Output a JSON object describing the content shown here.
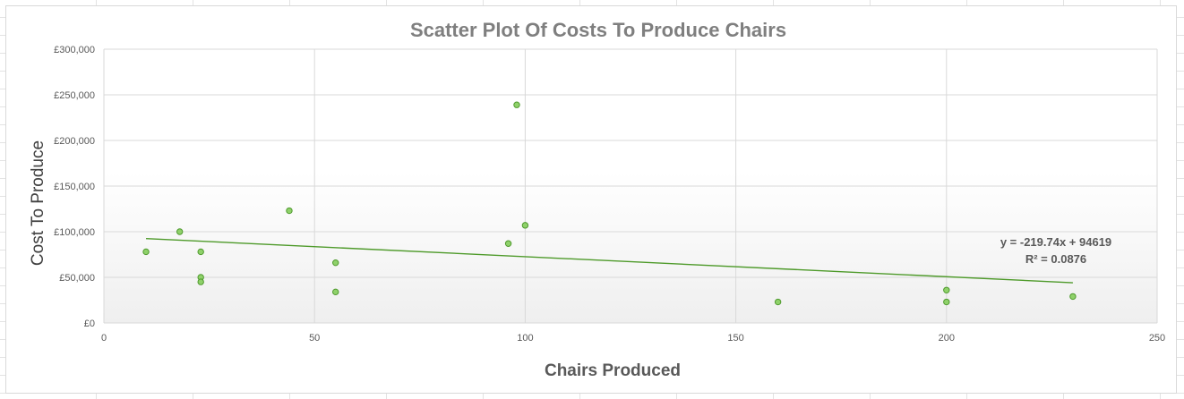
{
  "chart_data": {
    "type": "scatter",
    "title": "Scatter Plot Of Costs To Produce Chairs",
    "xlabel": "Chairs Produced",
    "ylabel": "Cost To Produce",
    "xlim": [
      0,
      250
    ],
    "ylim": [
      0,
      300000
    ],
    "x_ticks": [
      0,
      50,
      100,
      150,
      200,
      250
    ],
    "y_ticks": [
      0,
      50000,
      100000,
      150000,
      200000,
      250000,
      300000
    ],
    "y_tick_labels": [
      "£0",
      "£50,000",
      "£100,000",
      "£150,000",
      "£200,000",
      "£250,000",
      "£300,000"
    ],
    "grid": true,
    "legend": "none",
    "points": [
      {
        "x": 10,
        "y": 78000
      },
      {
        "x": 18,
        "y": 100000
      },
      {
        "x": 23,
        "y": 78000
      },
      {
        "x": 23,
        "y": 50000
      },
      {
        "x": 23,
        "y": 45000
      },
      {
        "x": 44,
        "y": 123000
      },
      {
        "x": 55,
        "y": 66000
      },
      {
        "x": 55,
        "y": 34000
      },
      {
        "x": 96,
        "y": 87000
      },
      {
        "x": 98,
        "y": 239000
      },
      {
        "x": 100,
        "y": 107000
      },
      {
        "x": 160,
        "y": 23000
      },
      {
        "x": 200,
        "y": 36000
      },
      {
        "x": 200,
        "y": 23000
      },
      {
        "x": 230,
        "y": 29000
      }
    ],
    "trendline": {
      "type": "linear",
      "slope": -219.74,
      "intercept": 94619,
      "x_range": [
        10,
        230
      ],
      "equation_text": "y = -219.74x + 94619",
      "r2_text": "R² = 0.0876"
    },
    "colors": {
      "marker_fill": "#8fd16a",
      "marker_stroke": "#4f9a2e",
      "trendline": "#4e9a2a",
      "gridline": "#d9d9d9",
      "plot_gradient_top": "#ffffff",
      "plot_gradient_bottom": "#f0f0f0"
    }
  }
}
